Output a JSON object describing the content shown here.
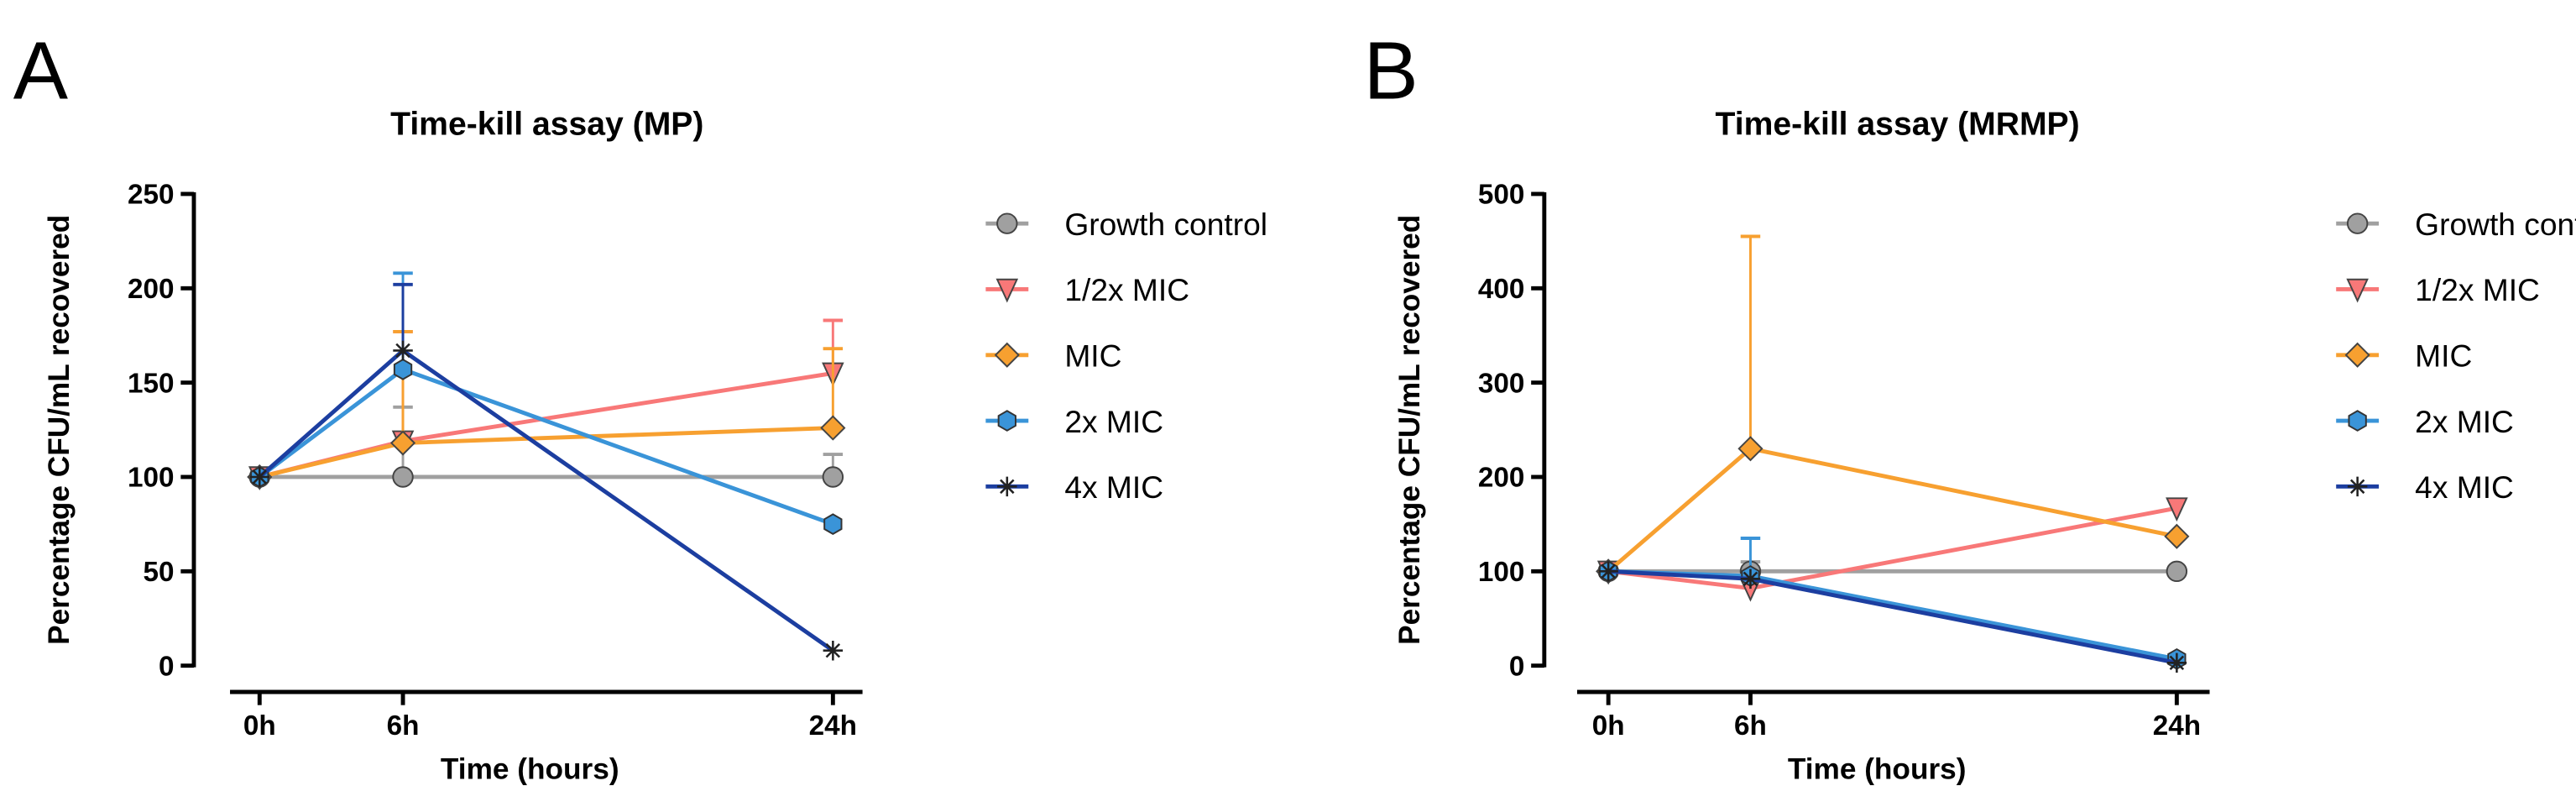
{
  "chart_data": [
    {
      "type": "line",
      "panel_label": "A",
      "title": "Time-kill assay (MP)",
      "xlabel": "Time (hours)",
      "ylabel": "Percentage CFU/mL recovered",
      "x": [
        0,
        6,
        24
      ],
      "x_tick_labels": [
        "0h",
        "6h",
        "24h"
      ],
      "ylim": [
        0,
        250
      ],
      "y_ticks": [
        0,
        50,
        100,
        150,
        200,
        250
      ],
      "legend_position": "right",
      "series": [
        {
          "name": "Growth control",
          "color": "#a0a0a0",
          "marker": "circle",
          "values": [
            100,
            100,
            100
          ],
          "err_upper": [
            null,
            137,
            112
          ]
        },
        {
          "name": "1/2x MIC",
          "color": "#f87878",
          "marker": "triangle-down",
          "values": [
            100,
            119,
            155
          ],
          "err_upper": [
            null,
            177,
            183
          ]
        },
        {
          "name": "MIC",
          "color": "#f7a030",
          "marker": "diamond",
          "values": [
            100,
            118,
            126
          ],
          "err_upper": [
            null,
            177,
            168
          ]
        },
        {
          "name": "2x MIC",
          "color": "#3a94d8",
          "marker": "hexagon",
          "values": [
            100,
            157,
            75
          ],
          "err_upper": [
            null,
            208,
            null
          ]
        },
        {
          "name": "4x MIC",
          "color": "#1c3ea0",
          "marker": "star",
          "values": [
            100,
            167,
            8
          ],
          "err_upper": [
            null,
            202,
            null
          ]
        }
      ]
    },
    {
      "type": "line",
      "panel_label": "B",
      "title": "Time-kill assay (MRMP)",
      "xlabel": "Time (hours)",
      "ylabel": "Percentage CFU/mL recovered",
      "x": [
        0,
        6,
        24
      ],
      "x_tick_labels": [
        "0h",
        "6h",
        "24h"
      ],
      "ylim": [
        0,
        500
      ],
      "y_ticks": [
        0,
        100,
        200,
        300,
        400,
        500
      ],
      "legend_position": "right",
      "series": [
        {
          "name": "Growth control",
          "color": "#a0a0a0",
          "marker": "circle",
          "values": [
            100,
            100,
            100
          ],
          "err_upper": [
            null,
            110,
            null
          ]
        },
        {
          "name": "1/2x MIC",
          "color": "#f87878",
          "marker": "triangle-down",
          "values": [
            100,
            82,
            167
          ],
          "err_upper": [
            null,
            null,
            null
          ]
        },
        {
          "name": "MIC",
          "color": "#f7a030",
          "marker": "diamond",
          "values": [
            100,
            230,
            137
          ],
          "err_upper": [
            null,
            455,
            null
          ]
        },
        {
          "name": "2x MIC",
          "color": "#3a94d8",
          "marker": "hexagon",
          "values": [
            100,
            95,
            7
          ],
          "err_upper": [
            null,
            135,
            null
          ]
        },
        {
          "name": "4x MIC",
          "color": "#1c3ea0",
          "marker": "star",
          "values": [
            100,
            92,
            3
          ],
          "err_upper": [
            null,
            null,
            null
          ]
        }
      ]
    }
  ]
}
